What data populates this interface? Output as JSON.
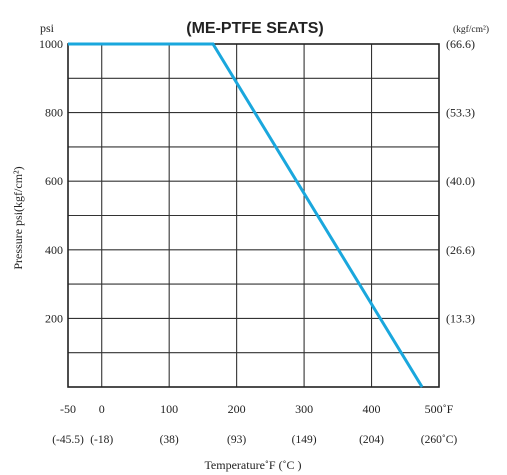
{
  "chart_data": {
    "type": "line",
    "title": "(ME-PTFE  SEATS)",
    "xlabel": "Temperature˚F (˚C )",
    "ylabel": "Pressure  psi(kgf/cm²)",
    "y_unit_left": "psi",
    "y_unit_right": "(kgf/cm²)",
    "xlim": [
      -50,
      500
    ],
    "ylim": [
      0,
      1000
    ],
    "grid": true,
    "x_ticks_f": [
      "-50",
      "0",
      "100",
      "200",
      "300",
      "400",
      "500˚F"
    ],
    "x_ticks_c": [
      "(-45.5)",
      "(-18)",
      "(38)",
      "(93)",
      "(149)",
      "(204)",
      "(260˚C)"
    ],
    "y_ticks_left": [
      "1000",
      "800",
      "600",
      "400",
      "200"
    ],
    "y_ticks_right": [
      "(66.6)",
      "(53.3)",
      "(40.0)",
      "(26.6)",
      "(13.3)"
    ],
    "line_color": "#1aa7dd",
    "series": [
      {
        "x": [
          -50,
          165,
          475
        ],
        "y": [
          1000,
          1000,
          0
        ]
      }
    ]
  }
}
